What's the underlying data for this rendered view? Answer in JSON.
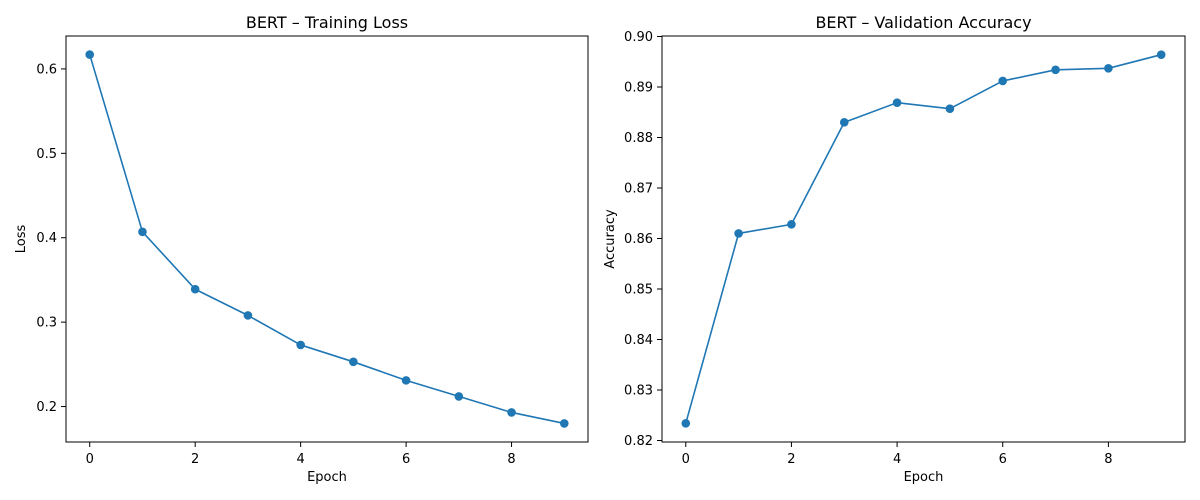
{
  "chart_data": [
    {
      "type": "line",
      "title": "BERT – Training Loss",
      "xlabel": "Epoch",
      "ylabel": "Loss",
      "x": [
        0,
        1,
        2,
        3,
        4,
        5,
        6,
        7,
        8,
        9
      ],
      "series": [
        {
          "values": [
            0.617,
            0.407,
            0.339,
            0.308,
            0.273,
            0.253,
            0.231,
            0.212,
            0.193,
            0.18
          ]
        }
      ],
      "xlim": [
        -0.45,
        9.45
      ],
      "ylim": [
        0.158,
        0.639
      ],
      "xticks": [
        0,
        2,
        4,
        6,
        8
      ],
      "yticks": [
        0.2,
        0.3,
        0.4,
        0.5,
        0.6
      ],
      "xtick_labels": [
        "0",
        "2",
        "4",
        "6",
        "8"
      ],
      "ytick_labels": [
        "0.2",
        "0.3",
        "0.4",
        "0.5",
        "0.6"
      ],
      "marker": "circle",
      "color": "#1f77b4",
      "grid": false,
      "legend": "none"
    },
    {
      "type": "line",
      "title": "BERT – Validation Accuracy",
      "xlabel": "Epoch",
      "ylabel": "Accuracy",
      "x": [
        0,
        1,
        2,
        3,
        4,
        5,
        6,
        7,
        8,
        9
      ],
      "series": [
        {
          "values": [
            0.8234,
            0.861,
            0.8628,
            0.883,
            0.8869,
            0.8857,
            0.8912,
            0.8934,
            0.8937,
            0.8964
          ]
        }
      ],
      "xlim": [
        -0.45,
        9.45
      ],
      "ylim": [
        0.8197,
        0.9001
      ],
      "xticks": [
        0,
        2,
        4,
        6,
        8
      ],
      "yticks": [
        0.82,
        0.83,
        0.84,
        0.85,
        0.86,
        0.87,
        0.88,
        0.89,
        0.9
      ],
      "xtick_labels": [
        "0",
        "2",
        "4",
        "6",
        "8"
      ],
      "ytick_labels": [
        "0.82",
        "0.83",
        "0.84",
        "0.85",
        "0.86",
        "0.87",
        "0.88",
        "0.89",
        "0.90"
      ],
      "marker": "circle",
      "color": "#1f77b4",
      "grid": false,
      "legend": "none"
    }
  ]
}
